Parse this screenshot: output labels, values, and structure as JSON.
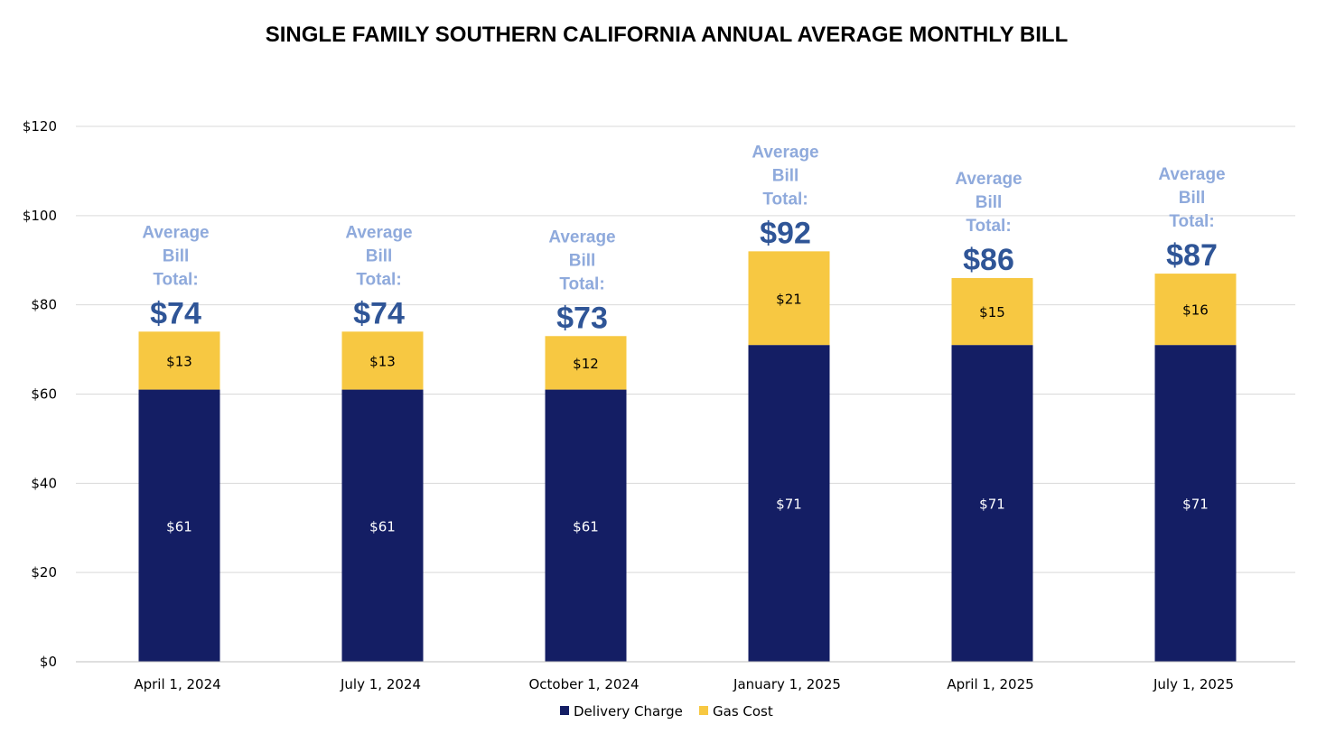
{
  "chart_data": {
    "type": "bar",
    "stacked": true,
    "title": "SINGLE FAMILY SOUTHERN CALIFORNIA ANNUAL AVERAGE MONTHLY BILL",
    "categories": [
      "April 1, 2024",
      "July 1, 2024",
      "October 1, 2024",
      "January 1, 2025",
      "April 1, 2025",
      "July 1, 2025"
    ],
    "series": [
      {
        "name": "Delivery Charge",
        "color": "#141e64",
        "values": [
          61,
          61,
          61,
          71,
          71,
          71
        ],
        "labels": [
          "$61",
          "$61",
          "$61",
          "$71",
          "$71",
          "$71"
        ]
      },
      {
        "name": "Gas Cost",
        "color": "#f7c842",
        "values": [
          13,
          13,
          12,
          21,
          15,
          16
        ],
        "labels": [
          "$13",
          "$13",
          "$12",
          "$21",
          "$15",
          "$16"
        ]
      }
    ],
    "totals": [
      74,
      74,
      73,
      92,
      86,
      87
    ],
    "total_annotation_lines": [
      "Average",
      "Bill",
      "Total:"
    ],
    "total_labels": [
      "$74",
      "$74",
      "$73",
      "$92",
      "$86",
      "$87"
    ],
    "yticks": [
      0,
      20,
      40,
      60,
      80,
      100,
      120
    ],
    "ytick_labels": [
      "$0",
      "$20",
      "$40",
      "$60",
      "$80",
      "$100",
      "$120"
    ],
    "ylim": [
      0,
      120
    ],
    "xlabel": "",
    "ylabel": "",
    "grid": true,
    "legend_position": "bottom-center",
    "gridline_color": "#d9d9d9",
    "axis_color": "#bfbfbf"
  }
}
